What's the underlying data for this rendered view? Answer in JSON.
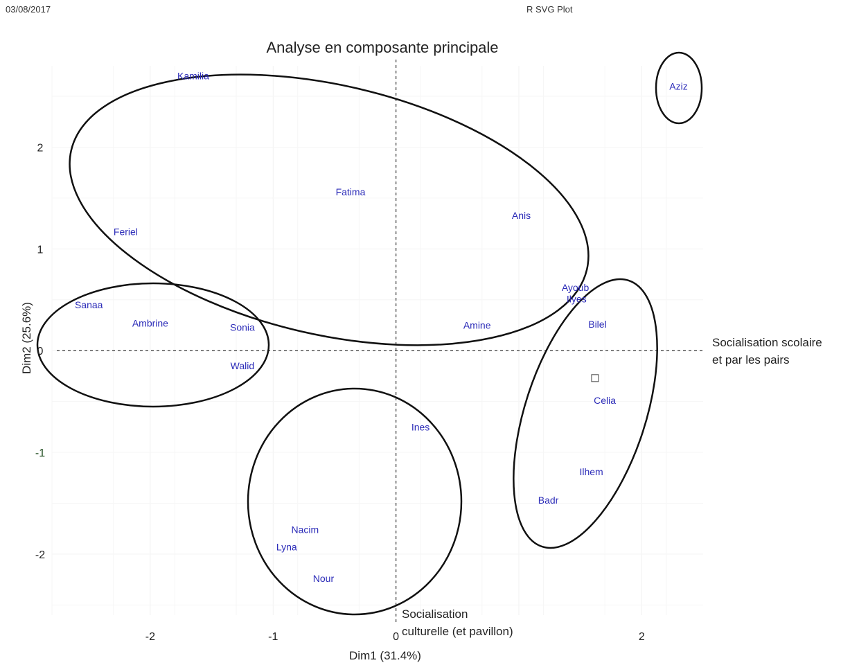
{
  "header": {
    "date": "03/08/2017",
    "plot_label": "R SVG Plot"
  },
  "chart_data": {
    "type": "scatter",
    "title": "Analyse en composante principale",
    "xlabel": "Dim1 (31.4%)",
    "ylabel": "Dim2 (25.6%)",
    "xlim": [
      -2.8,
      2.5
    ],
    "ylim": [
      -2.6,
      2.8
    ],
    "x_ticks": [
      -2,
      -1,
      0,
      1,
      2
    ],
    "y_ticks": [
      -2,
      -1,
      0,
      1,
      2
    ],
    "x_tick_labels": [
      "-2",
      "-1",
      "0",
      "",
      "2"
    ],
    "y_tick_labels": [
      "-2",
      "-1",
      "0",
      "1",
      "2"
    ],
    "grid": true,
    "reference_lines": [
      {
        "axis": "x",
        "value": 0
      },
      {
        "axis": "y",
        "value": 0
      }
    ],
    "color": "#2b2bb8",
    "points": [
      {
        "label": "Kamilia",
        "x": -1.65,
        "y": 2.7
      },
      {
        "label": "Aziz",
        "x": 2.3,
        "y": 2.6
      },
      {
        "label": "Fatima",
        "x": -0.37,
        "y": 1.56
      },
      {
        "label": "Anis",
        "x": 1.02,
        "y": 1.33
      },
      {
        "label": "Feriel",
        "x": -2.2,
        "y": 1.17
      },
      {
        "label": "Ayoub",
        "x": 1.46,
        "y": 0.62
      },
      {
        "label": "Ilyes",
        "x": 1.47,
        "y": 0.51
      },
      {
        "label": "Sanaa",
        "x": -2.5,
        "y": 0.45
      },
      {
        "label": "Ambrine",
        "x": -2.0,
        "y": 0.27
      },
      {
        "label": "Sonia",
        "x": -1.25,
        "y": 0.23
      },
      {
        "label": "Amine",
        "x": 0.66,
        "y": 0.25
      },
      {
        "label": "Bilel",
        "x": 1.64,
        "y": 0.26
      },
      {
        "label": "Walid",
        "x": -1.25,
        "y": -0.15
      },
      {
        "label": "Celia",
        "x": 1.7,
        "y": -0.49
      },
      {
        "label": "Ines",
        "x": 0.2,
        "y": -0.75
      },
      {
        "label": "Ilhem",
        "x": 1.59,
        "y": -1.19
      },
      {
        "label": "Badr",
        "x": 1.24,
        "y": -1.47
      },
      {
        "label": "Nacim",
        "x": -0.74,
        "y": -1.76
      },
      {
        "label": "Lyna",
        "x": -0.89,
        "y": -1.93
      },
      {
        "label": "Nour",
        "x": -0.59,
        "y": -2.24
      }
    ],
    "open_square_marker": {
      "x": 1.62,
      "y": -0.27
    },
    "clusters": [
      {
        "members": [
          "Kamilia",
          "Fatima",
          "Anis",
          "Feriel",
          "Sonia",
          "Amine"
        ]
      },
      {
        "members": [
          "Aziz"
        ]
      },
      {
        "members": [
          "Sanaa",
          "Ambrine",
          "Sonia",
          "Walid"
        ]
      },
      {
        "members": [
          "Ines",
          "Nacim",
          "Lyna",
          "Nour"
        ]
      },
      {
        "members": [
          "Ayoub",
          "Ilyes",
          "Bilel",
          "Celia",
          "Ilhem",
          "Badr"
        ]
      }
    ],
    "annotations": [
      {
        "id": "x_axis_label",
        "lines": [
          "Socialisation scolaire",
          "et par les pairs"
        ]
      },
      {
        "id": "y_axis_label",
        "lines": [
          "Socialisation",
          "culturelle (et pavillon)"
        ]
      }
    ]
  }
}
